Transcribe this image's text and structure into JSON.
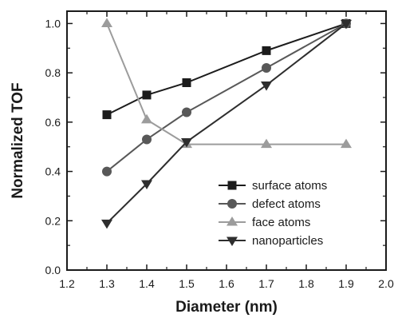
{
  "chart_data": {
    "type": "line",
    "title": "",
    "xlabel": "Diameter (nm)",
    "ylabel": "Normalized TOF",
    "xlim": [
      1.2,
      2.0
    ],
    "ylim": [
      0.0,
      1.05
    ],
    "xticks": [
      "1.2",
      "1.3",
      "1.4",
      "1.5",
      "1.6",
      "1.7",
      "1.8",
      "1.9",
      "2.0"
    ],
    "yticks": [
      "0.0",
      "0.2",
      "0.4",
      "0.6",
      "0.8",
      "1.0"
    ],
    "grid": false,
    "legend_position": "bottom-right",
    "series": [
      {
        "name": "surface atoms",
        "marker": "square",
        "color": "#1c1c1c",
        "x": [
          1.3,
          1.4,
          1.5,
          1.7,
          1.9
        ],
        "y": [
          0.63,
          0.71,
          0.76,
          0.89,
          1.0
        ]
      },
      {
        "name": "defect atoms",
        "marker": "circle",
        "color": "#585858",
        "x": [
          1.3,
          1.4,
          1.5,
          1.7,
          1.9
        ],
        "y": [
          0.4,
          0.53,
          0.64,
          0.82,
          1.0
        ]
      },
      {
        "name": "face atoms",
        "marker": "triangle-up",
        "color": "#9c9c9c",
        "x": [
          1.3,
          1.4,
          1.5,
          1.7,
          1.9
        ],
        "y": [
          1.0,
          0.61,
          0.51,
          0.51,
          0.51
        ]
      },
      {
        "name": "nanoparticles",
        "marker": "triangle-down",
        "color": "#2e2e2e",
        "x": [
          1.3,
          1.4,
          1.5,
          1.7,
          1.9
        ],
        "y": [
          0.19,
          0.35,
          0.52,
          0.75,
          1.0
        ]
      }
    ]
  }
}
